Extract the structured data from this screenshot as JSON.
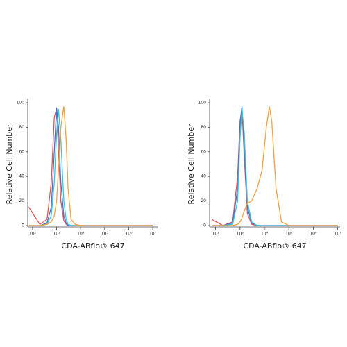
{
  "chart_data": [
    {
      "type": "line",
      "log_x": true,
      "ylabel": "Relative Cell Number",
      "xlabel": "CDA-ABflo® 647",
      "xlim": [
        63,
        17000000
      ],
      "xticks": [
        {
          "value": 100,
          "label": "10²"
        },
        {
          "value": 1000,
          "label": "10³"
        },
        {
          "value": 10000,
          "label": "10⁴"
        },
        {
          "value": 100000,
          "label": "10⁵"
        },
        {
          "value": 1000000,
          "label": "10⁶"
        },
        {
          "value": 10000000,
          "label": "10⁷"
        }
      ],
      "ylim": [
        0,
        100
      ],
      "yticks": [
        0,
        20,
        40,
        60,
        80,
        100
      ],
      "x": [
        70,
        200,
        400,
        600,
        800,
        1000,
        1200,
        1500,
        2000,
        2500,
        3000,
        4000,
        6000,
        10000,
        100000,
        1000000,
        10000000
      ],
      "series": [
        {
          "color": "#e8514f",
          "values": [
            15,
            1,
            5,
            35,
            88,
            95,
            60,
            20,
            4,
            1,
            0,
            0,
            0,
            0,
            0,
            0,
            0
          ]
        },
        {
          "color": "#4a6fd0",
          "values": [
            0,
            0,
            2,
            15,
            60,
            96,
            80,
            35,
            8,
            2,
            0,
            0,
            0,
            0,
            0,
            0,
            0
          ]
        },
        {
          "color": "#2ec8e0",
          "values": [
            0,
            0,
            1,
            8,
            35,
            75,
            95,
            70,
            20,
            5,
            1,
            0,
            0,
            0,
            0,
            0,
            0
          ]
        },
        {
          "color": "#f5a03a",
          "values": [
            0,
            0,
            1,
            3,
            8,
            20,
            45,
            80,
            97,
            70,
            30,
            5,
            1,
            0,
            0,
            0,
            0
          ]
        }
      ]
    },
    {
      "type": "line",
      "log_x": true,
      "ylabel": "Relative Cell Number",
      "xlabel": "CDA-ABflo® 647",
      "xlim": [
        57,
        12500000
      ],
      "xticks": [
        {
          "value": 100,
          "label": "10²"
        },
        {
          "value": 1000,
          "label": "10³"
        },
        {
          "value": 10000,
          "label": "10⁴"
        },
        {
          "value": 100000,
          "label": "10⁵"
        },
        {
          "value": 1000000,
          "label": "10⁶"
        },
        {
          "value": 10000000,
          "label": "10⁷"
        }
      ],
      "ylim": [
        0,
        100
      ],
      "yticks": [
        0,
        20,
        40,
        60,
        80,
        100
      ],
      "x": [
        70,
        200,
        500,
        800,
        1000,
        1200,
        1500,
        2000,
        3000,
        5000,
        8000,
        12000,
        16000,
        20000,
        30000,
        50000,
        100000,
        1000000,
        10000000
      ],
      "series": [
        {
          "color": "#e8514f",
          "values": [
            5,
            0,
            3,
            40,
            85,
            96,
            55,
            10,
            1,
            0,
            0,
            0,
            0,
            0,
            0,
            0,
            0,
            0,
            0
          ]
        },
        {
          "color": "#4a6fd0",
          "values": [
            0,
            0,
            2,
            30,
            80,
            97,
            65,
            15,
            2,
            0,
            0,
            0,
            0,
            0,
            0,
            0,
            0,
            0,
            0
          ]
        },
        {
          "color": "#2ec8e0",
          "values": [
            0,
            0,
            1,
            20,
            70,
            95,
            75,
            20,
            3,
            0,
            0,
            0,
            0,
            0,
            0,
            0,
            0,
            0,
            0
          ]
        },
        {
          "color": "#f5a03a",
          "values": [
            0,
            0,
            0,
            1,
            3,
            6,
            12,
            18,
            20,
            30,
            45,
            80,
            97,
            85,
            30,
            3,
            0,
            0,
            0
          ]
        }
      ]
    }
  ]
}
